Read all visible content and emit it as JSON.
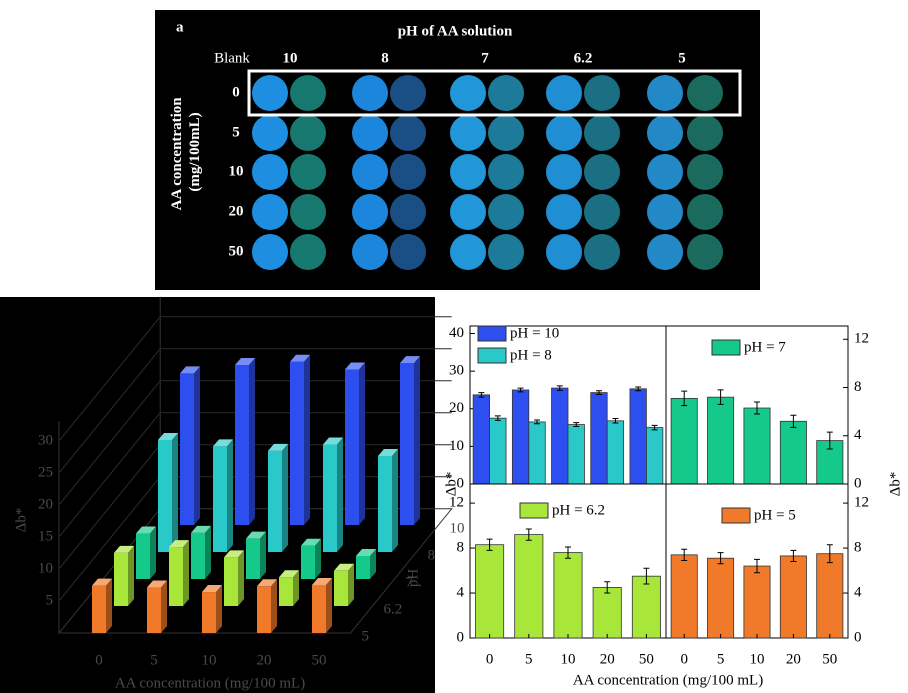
{
  "photo": {
    "panel_label": "a",
    "title": "pH of AA solution",
    "blank_label": "Blank",
    "columns": [
      "10",
      "8",
      "7",
      "6.2",
      "5"
    ],
    "rows": [
      "0",
      "5",
      "10",
      "20",
      "50"
    ],
    "ylabel": [
      "AA concentration",
      "(mg/100mL)"
    ]
  },
  "chart_data": [
    {
      "type": "bar3d",
      "categories": [
        "0",
        "5",
        "10",
        "20",
        "50"
      ],
      "xlabel": "AA concentration (mg/100 mL)",
      "ylabel": "Δb*",
      "zlabel": "pH",
      "ylim": [
        0,
        30
      ],
      "yticks": [
        5,
        10,
        15,
        20,
        25,
        30
      ],
      "series": [
        {
          "name": "10",
          "color": "#2e4ff0",
          "values": [
            23.7,
            25.0,
            25.5,
            24.3,
            25.3
          ]
        },
        {
          "name": "8",
          "color": "#2ac9c9",
          "values": [
            17.5,
            16.5,
            15.8,
            16.8,
            15.0
          ]
        },
        {
          "name": "7",
          "color": "#14c98a",
          "values": [
            7.1,
            7.2,
            6.3,
            5.2,
            3.6
          ]
        },
        {
          "name": "6.2",
          "color": "#a8e63a",
          "values": [
            8.3,
            9.2,
            7.6,
            4.5,
            5.5
          ]
        },
        {
          "name": "5",
          "color": "#f07a2a",
          "values": [
            7.4,
            7.1,
            6.4,
            7.3,
            7.5
          ]
        }
      ]
    },
    {
      "type": "bar-panels",
      "categories": [
        "0",
        "5",
        "10",
        "20",
        "50"
      ],
      "xlabel": "AA concentration (mg/100 mL)",
      "ylabel": "Δb*",
      "y2label": "Δb*",
      "panels": [
        {
          "axis": "left",
          "ylim": [
            0,
            42
          ],
          "yticks": [
            0,
            10,
            20,
            30,
            40
          ],
          "series": [
            {
              "name": "pH = 10",
              "color": "#2e4ff0",
              "values": [
                23.7,
                25.0,
                25.5,
                24.3,
                25.3
              ],
              "errors": [
                0.6,
                0.5,
                0.6,
                0.5,
                0.5
              ]
            },
            {
              "name": "pH = 8",
              "color": "#2ac9c9",
              "values": [
                17.5,
                16.5,
                15.8,
                16.8,
                15.0
              ],
              "errors": [
                0.6,
                0.5,
                0.5,
                0.6,
                0.6
              ]
            }
          ]
        },
        {
          "axis": "right",
          "ylim": [
            0,
            13.1
          ],
          "yticks": [
            0,
            4,
            8,
            12
          ],
          "series": [
            {
              "name": "pH = 7",
              "color": "#14c98a",
              "values": [
                7.1,
                7.2,
                6.3,
                5.2,
                3.6
              ],
              "errors": [
                0.6,
                0.6,
                0.5,
                0.5,
                0.7
              ]
            }
          ]
        },
        {
          "axis": "left",
          "ylim": [
            0,
            13.7
          ],
          "yticks": [
            0,
            4,
            8,
            12
          ],
          "series": [
            {
              "name": "pH = 6.2",
              "color": "#a8e63a",
              "values": [
                8.3,
                9.2,
                7.6,
                4.5,
                5.5
              ],
              "errors": [
                0.5,
                0.5,
                0.5,
                0.5,
                0.7
              ]
            }
          ]
        },
        {
          "axis": "right",
          "ylim": [
            0,
            13.7
          ],
          "yticks": [
            0,
            4,
            8,
            12
          ],
          "series": [
            {
              "name": "pH = 5",
              "color": "#f07a2a",
              "values": [
                7.4,
                7.1,
                6.4,
                7.3,
                7.5
              ],
              "errors": [
                0.5,
                0.5,
                0.6,
                0.5,
                0.8
              ]
            }
          ]
        }
      ]
    }
  ]
}
